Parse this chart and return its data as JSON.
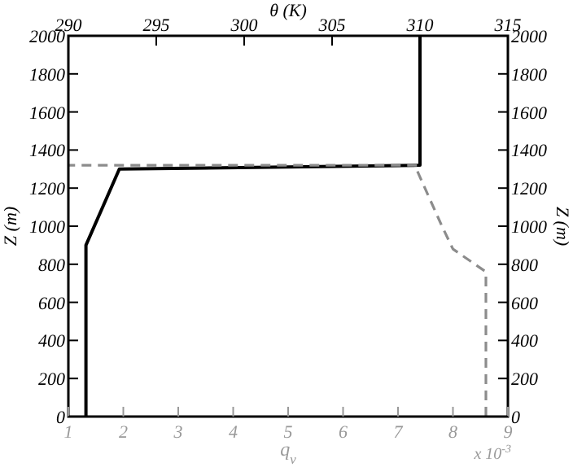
{
  "chart_data": {
    "type": "line",
    "xlabel": "q$_{v}$",
    "x2label": "θ (K)",
    "ylabel": "Z (m)",
    "y2label": "Z (m)",
    "xlim": [
      1,
      9
    ],
    "xticks": [
      1,
      2,
      3,
      4,
      5,
      6,
      7,
      8,
      9
    ],
    "x2lim": [
      290,
      315
    ],
    "x2ticks": [
      290,
      295,
      300,
      305,
      310,
      315
    ],
    "ylim": [
      0,
      2000
    ],
    "yticks": [
      0,
      200,
      400,
      600,
      800,
      1000,
      1200,
      1400,
      1600,
      1800,
      2000
    ],
    "y2lim": [
      0,
      2000
    ],
    "y2ticks": [
      0,
      200,
      400,
      600,
      800,
      1000,
      1200,
      1400,
      1600,
      1800,
      2000
    ],
    "annotations": [
      "x 10$^{-3}$"
    ],
    "grid": false,
    "series": [
      {
        "color": "#000000",
        "axis": "x2",
        "line_style": "solid",
        "x": [
          291,
          291,
          292.9,
          310,
          310
        ],
        "values": [
          0,
          900,
          1300,
          1320,
          2000
        ]
      },
      {
        "color": "#8c8c8c",
        "line_style": "dashed",
        "x": [
          8.6,
          8.6,
          8.0,
          7.8,
          7.35,
          7.35,
          1.0
        ],
        "values": [
          0,
          760,
          880,
          1000,
          1290,
          1320,
          1320
        ]
      }
    ]
  }
}
